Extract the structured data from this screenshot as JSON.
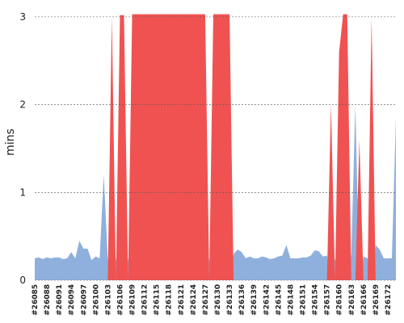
{
  "chart_data": {
    "type": "area",
    "y_label": "mins",
    "categories": [
      "#26085",
      null,
      null,
      "#26088",
      null,
      null,
      "#26091",
      null,
      null,
      "#26094",
      null,
      null,
      "#26097",
      null,
      null,
      "#26100",
      null,
      null,
      "#26103",
      null,
      null,
      "#26106",
      null,
      null,
      "#26109",
      null,
      null,
      "#26112",
      null,
      null,
      "#26115",
      null,
      null,
      "#26118",
      null,
      null,
      "#26121",
      null,
      null,
      "#26124",
      null,
      null,
      "#26127",
      null,
      null,
      "#26130",
      null,
      null,
      "#26133",
      null,
      null,
      "#26136",
      null,
      null,
      "#26139",
      null,
      null,
      "#26142",
      null,
      null,
      "#26145",
      null,
      null,
      "#26148",
      null,
      null,
      "#26151",
      null,
      null,
      "#26154",
      null,
      null,
      "#26157",
      null,
      null,
      "#26160",
      null,
      null,
      "#26163",
      null,
      null,
      "#26166",
      null,
      null,
      "#26169",
      null,
      null,
      "#26172",
      null,
      null
    ],
    "series": [
      {
        "color": "#8fb0dc",
        "values": [
          0.25,
          0.26,
          0.24,
          0.26,
          0.25,
          0.26,
          0.26,
          0.24,
          0.25,
          0.32,
          0.25,
          0.45,
          0.36,
          0.36,
          0.23,
          0.27,
          0.25,
          1.2,
          0.25,
          0,
          0.25,
          0,
          0,
          0.25,
          0,
          0,
          0,
          0,
          0,
          0,
          0,
          0,
          0,
          0,
          0,
          0,
          0,
          0,
          0,
          0,
          0,
          0,
          0,
          0.25,
          0,
          0,
          0,
          0,
          0,
          0.3,
          0.35,
          0.32,
          0.25,
          0.27,
          0.25,
          0.25,
          0.27,
          0.26,
          0.24,
          0.25,
          0.27,
          0.28,
          0.4,
          0.25,
          0.25,
          0.25,
          0.26,
          0.26,
          0.28,
          0.34,
          0.33,
          0.27,
          0.28,
          0,
          0.25,
          0,
          0,
          0,
          0.3,
          2,
          0,
          0.27,
          0.25,
          0,
          0.4,
          0.35,
          0.25,
          0.25,
          0.25,
          1.85
        ]
      },
      {
        "color": "#f05252",
        "values": [
          0,
          0,
          0,
          0,
          0,
          0,
          0,
          0,
          0,
          0,
          0,
          0,
          0,
          0,
          0,
          0,
          0,
          0,
          0,
          3,
          0,
          3.02,
          3.02,
          0,
          3.03,
          3.03,
          3.03,
          3.03,
          3.03,
          3.03,
          3.03,
          3.03,
          3.03,
          3.03,
          3.03,
          3.03,
          3.03,
          3.03,
          3.03,
          3.03,
          3.03,
          3.03,
          3.03,
          0,
          3.03,
          3.03,
          3.03,
          3.03,
          3.03,
          0,
          0,
          0,
          0,
          0,
          0,
          0,
          0,
          0,
          0,
          0,
          0,
          0,
          0,
          0,
          0,
          0,
          0,
          0,
          0,
          0,
          0,
          0,
          0,
          2,
          0,
          2.6,
          3.03,
          3.03,
          0,
          0,
          1.6,
          0,
          0,
          3,
          0,
          0,
          0,
          0,
          0,
          0
        ]
      }
    ],
    "ylim": [
      0,
      3.1
    ],
    "yticks": [
      0,
      1,
      2,
      3
    ],
    "grid": true
  }
}
